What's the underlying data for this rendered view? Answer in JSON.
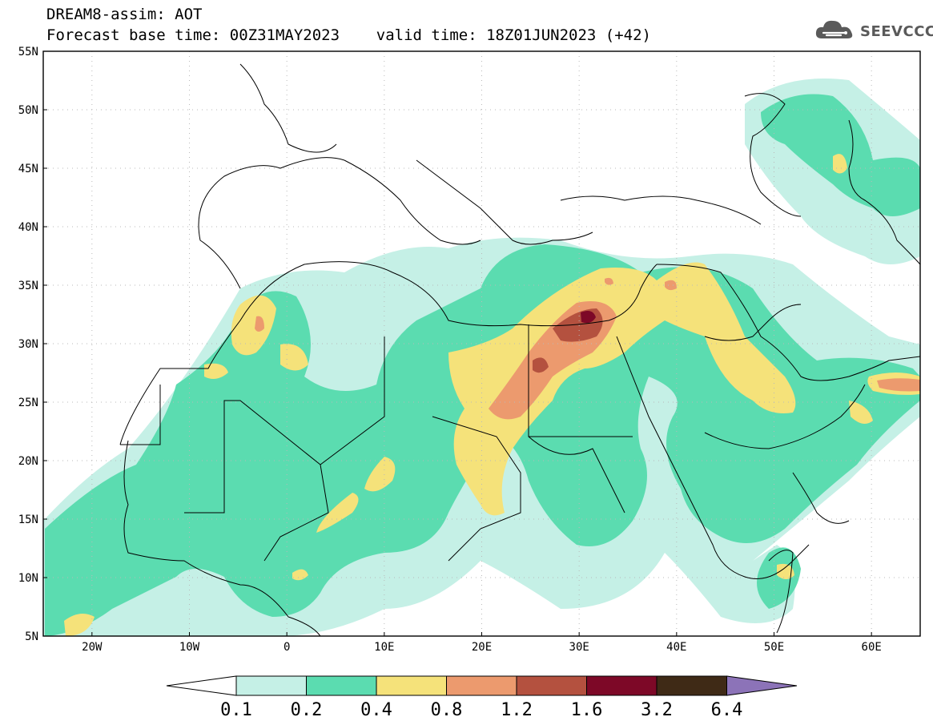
{
  "header": {
    "title_line1": "DREAM8-assim: AOT",
    "title_line2": "Forecast base time: 00Z31MAY2023    valid time: 18Z01JUN2023 (+42)"
  },
  "logo": {
    "icon": "cloud-icon",
    "text": "SEEVCCC"
  },
  "map": {
    "lon_range": [
      -25,
      65
    ],
    "lat_range": [
      5,
      55
    ],
    "lat_labels": [
      "55N",
      "50N",
      "45N",
      "40N",
      "35N",
      "30N",
      "25N",
      "20N",
      "15N",
      "10N",
      "5N"
    ],
    "lon_labels": [
      "20W",
      "10W",
      "0",
      "10E",
      "20E",
      "30E",
      "40E",
      "50E",
      "60E"
    ],
    "grid": "dotted"
  },
  "colorbar": {
    "colors": [
      "#ffffff",
      "#c5f0e6",
      "#5bdcb0",
      "#f5e27a",
      "#ec9a6e",
      "#b4513f",
      "#7d0827",
      "#3f2a16",
      "#8c73b8"
    ],
    "labels": [
      "0.1",
      "0.2",
      "0.4",
      "0.8",
      "1.2",
      "1.6",
      "3.2",
      "6.4"
    ]
  }
}
